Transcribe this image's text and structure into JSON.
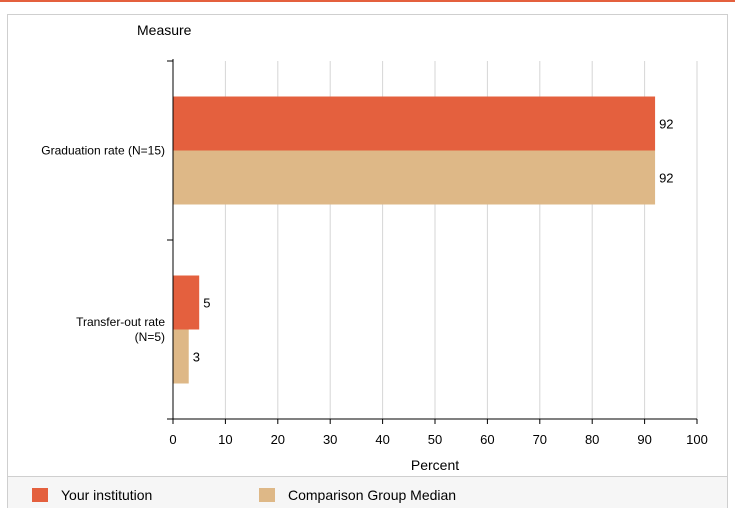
{
  "chart_data": {
    "type": "bar",
    "orientation": "horizontal",
    "y_title": "Measure",
    "xlabel": "Percent",
    "xlim": [
      0,
      100
    ],
    "x_ticks": [
      0,
      10,
      20,
      30,
      40,
      50,
      60,
      70,
      80,
      90,
      100
    ],
    "grid": true,
    "legend_position": "bottom",
    "categories": [
      [
        "Graduation rate (N=15)"
      ],
      [
        "Transfer-out rate",
        "(N=5)"
      ]
    ],
    "series": [
      {
        "name": "Your institution",
        "color": "#e4603e",
        "values": [
          92,
          5
        ]
      },
      {
        "name": "Comparison Group Median",
        "color": "#deb887",
        "values": [
          92,
          3
        ]
      }
    ]
  }
}
